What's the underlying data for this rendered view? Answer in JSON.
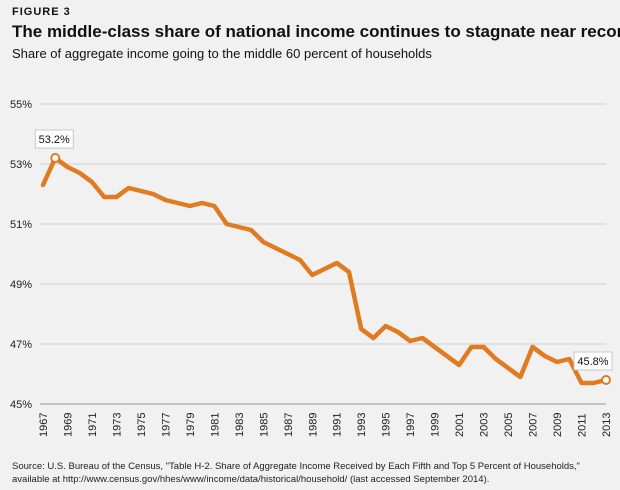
{
  "figure_label": "FIGURE 3",
  "source": "Source: U.S. Bureau of the Census, \"Table H-2. Share of Aggregate Income Received by Each Fifth and Top 5 Percent of Households,\" available at http://www.census.gov/hhes/www/income/data/historical/household/ (last accessed September 2014).",
  "chart_data": {
    "type": "line",
    "title": "The middle-class share of national income continues to stagnate near record lows",
    "subtitle": "Share of aggregate income going to the middle 60 percent of households",
    "xlabel": "",
    "ylabel": "",
    "ylim": [
      45,
      55
    ],
    "yticks": [
      "45%",
      "47%",
      "49%",
      "51%",
      "53%",
      "55%"
    ],
    "ytick_values": [
      45,
      47,
      49,
      51,
      53,
      55
    ],
    "xticks": [
      "1967",
      "1969",
      "1971",
      "1973",
      "1975",
      "1977",
      "1979",
      "1981",
      "1983",
      "1985",
      "1987",
      "1989",
      "1991",
      "1993",
      "1995",
      "1997",
      "1999",
      "2001",
      "2003",
      "2005",
      "2007",
      "2009",
      "2011",
      "2013"
    ],
    "grid": true,
    "line_color": "#e07b22",
    "x": [
      1967,
      1968,
      1969,
      1970,
      1971,
      1972,
      1973,
      1974,
      1975,
      1976,
      1977,
      1978,
      1979,
      1980,
      1981,
      1982,
      1983,
      1984,
      1985,
      1986,
      1987,
      1988,
      1989,
      1990,
      1991,
      1992,
      1993,
      1994,
      1995,
      1996,
      1997,
      1998,
      1999,
      2000,
      2001,
      2002,
      2003,
      2004,
      2005,
      2006,
      2007,
      2008,
      2009,
      2010,
      2011,
      2012,
      2013
    ],
    "values": [
      52.3,
      53.2,
      52.9,
      52.7,
      52.4,
      51.9,
      51.9,
      52.2,
      52.1,
      52.0,
      51.8,
      51.7,
      51.6,
      51.7,
      51.6,
      51.0,
      50.9,
      50.8,
      50.4,
      50.2,
      50.0,
      49.8,
      49.3,
      49.5,
      49.7,
      49.4,
      47.5,
      47.2,
      47.6,
      47.4,
      47.1,
      47.2,
      46.9,
      46.6,
      46.3,
      46.9,
      46.9,
      46.5,
      46.2,
      45.9,
      46.9,
      46.6,
      46.4,
      46.5,
      45.7,
      45.7,
      45.8
    ],
    "annotations": [
      {
        "x": 1968,
        "text": "53.2%"
      },
      {
        "x": 2013,
        "text": "45.8%"
      }
    ]
  }
}
